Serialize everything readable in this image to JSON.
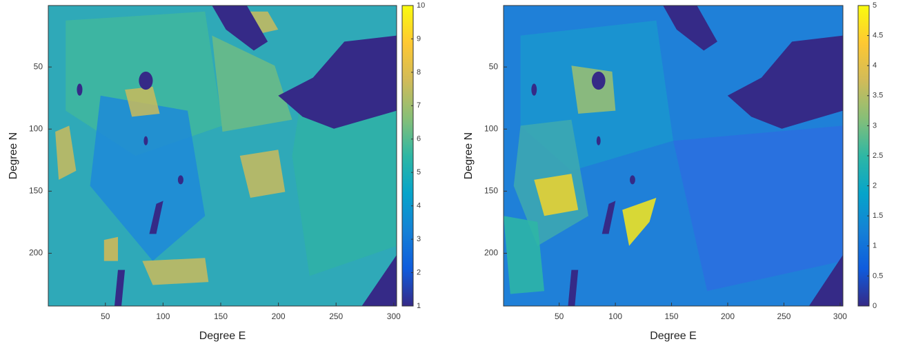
{
  "chart_data": [
    {
      "type": "heatmap",
      "xlabel": "Degree E",
      "ylabel": "Degree N",
      "xlim": [
        0.5,
        302.5
      ],
      "ylim": [
        0.5,
        242.5
      ],
      "y_reversed": true,
      "xticks": [
        50,
        100,
        150,
        200,
        250,
        300
      ],
      "yticks": [
        50,
        100,
        150,
        200
      ],
      "clim": [
        1,
        10
      ],
      "cticks": [
        1,
        2,
        3,
        4,
        5,
        6,
        7,
        8,
        9,
        10
      ],
      "colormap": [
        "#352a87",
        "#0f5cdd",
        "#1481d6",
        "#06a4ca",
        "#2eb7a4",
        "#87bf77",
        "#d1bb59",
        "#fec832",
        "#f9fb0e"
      ]
    },
    {
      "type": "heatmap",
      "xlabel": "Degree E",
      "ylabel": "Degree N",
      "xlim": [
        0.5,
        302.5
      ],
      "ylim": [
        0.5,
        242.5
      ],
      "y_reversed": true,
      "xticks": [
        50,
        100,
        150,
        200,
        250,
        300
      ],
      "yticks": [
        50,
        100,
        150,
        200
      ],
      "clim": [
        0,
        5
      ],
      "cticks": [
        0,
        0.5,
        1,
        1.5,
        2,
        2.5,
        3,
        3.5,
        4,
        4.5,
        5
      ],
      "colormap": [
        "#352a87",
        "#0f5cdd",
        "#1481d6",
        "#06a4ca",
        "#2eb7a4",
        "#87bf77",
        "#d1bb59",
        "#fec832",
        "#f9fb0e"
      ]
    }
  ]
}
